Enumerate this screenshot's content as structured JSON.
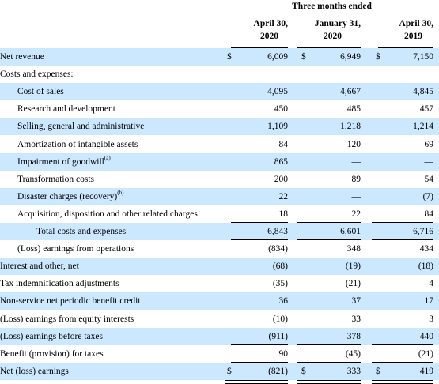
{
  "header": {
    "group_label": "Three months ended",
    "columns": [
      {
        "line1": "April 30,",
        "line2": "2020"
      },
      {
        "line1": "January 31,",
        "line2": "2020"
      },
      {
        "line1": "April 30,",
        "line2": "2019"
      }
    ]
  },
  "rows": [
    {
      "label": "Net revenue",
      "dollar": [
        "$",
        "$",
        "$"
      ],
      "values": [
        "6,009",
        "6,949",
        "7,150"
      ]
    },
    {
      "label": "Costs and expenses:",
      "values": [
        "",
        "",
        ""
      ]
    },
    {
      "label": "Cost of sales",
      "values": [
        "4,095",
        "4,667",
        "4,845"
      ]
    },
    {
      "label": "Research and development",
      "values": [
        "450",
        "485",
        "457"
      ]
    },
    {
      "label": "Selling, general and administrative",
      "values": [
        "1,109",
        "1,218",
        "1,214"
      ]
    },
    {
      "label": "Amortization of intangible assets",
      "values": [
        "84",
        "120",
        "69"
      ]
    },
    {
      "label": "Impairment of goodwill",
      "sup": "(a)",
      "values": [
        "865",
        "—",
        "—"
      ]
    },
    {
      "label": "Transformation costs",
      "values": [
        "200",
        "89",
        "54"
      ]
    },
    {
      "label": "Disaster charges (recovery)",
      "sup": "(b)",
      "values": [
        "22",
        "—",
        "(7)"
      ]
    },
    {
      "label": "Acquisition, disposition and other related charges",
      "values": [
        "18",
        "22",
        "84"
      ]
    },
    {
      "label": "Total costs and expenses",
      "values": [
        "6,843",
        "6,601",
        "6,716"
      ]
    },
    {
      "label": "(Loss) earnings from operations",
      "values": [
        "(834)",
        "348",
        "434"
      ]
    },
    {
      "label": "Interest and other, net",
      "values": [
        "(68)",
        "(19)",
        "(18)"
      ]
    },
    {
      "label": "Tax indemnification adjustments",
      "values": [
        "(35)",
        "(21)",
        "4"
      ]
    },
    {
      "label": "Non-service net periodic benefit credit",
      "values": [
        "36",
        "37",
        "17"
      ]
    },
    {
      "label": "(Loss) earnings from equity interests",
      "values": [
        "(10)",
        "33",
        "3"
      ]
    },
    {
      "label": "(Loss) earnings before taxes",
      "values": [
        "(911)",
        "378",
        "440"
      ]
    },
    {
      "label": "Benefit (provision) for taxes",
      "values": [
        "90",
        "(45)",
        "(21)"
      ]
    },
    {
      "label": "Net (loss) earnings",
      "dollar": [
        "$",
        "$",
        "$"
      ],
      "values": [
        "(821)",
        "333",
        "419"
      ]
    }
  ],
  "colors": {
    "row_shade": "#cce8ff"
  }
}
